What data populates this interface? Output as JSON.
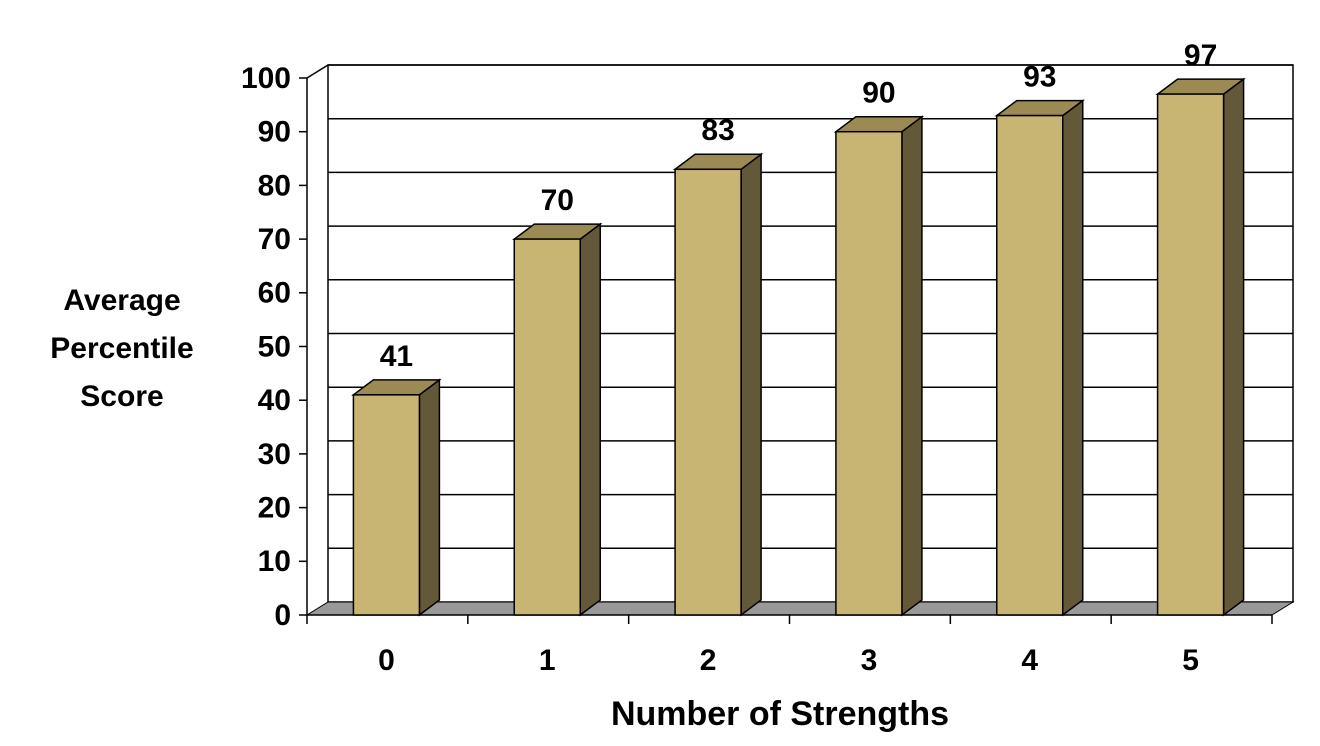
{
  "chart_data": {
    "type": "bar3d",
    "y_label": [
      "Average",
      "Percentile",
      "Score"
    ],
    "x_label": "Number of Strengths",
    "categories": [
      "0",
      "1",
      "2",
      "3",
      "4",
      "5"
    ],
    "values": [
      41,
      70,
      83,
      90,
      93,
      97
    ],
    "color": "#c8b473",
    "ylim": [
      0,
      100
    ],
    "yticks": [
      0,
      10,
      20,
      30,
      40,
      50,
      60,
      70,
      80,
      90,
      100
    ],
    "grid": true
  }
}
